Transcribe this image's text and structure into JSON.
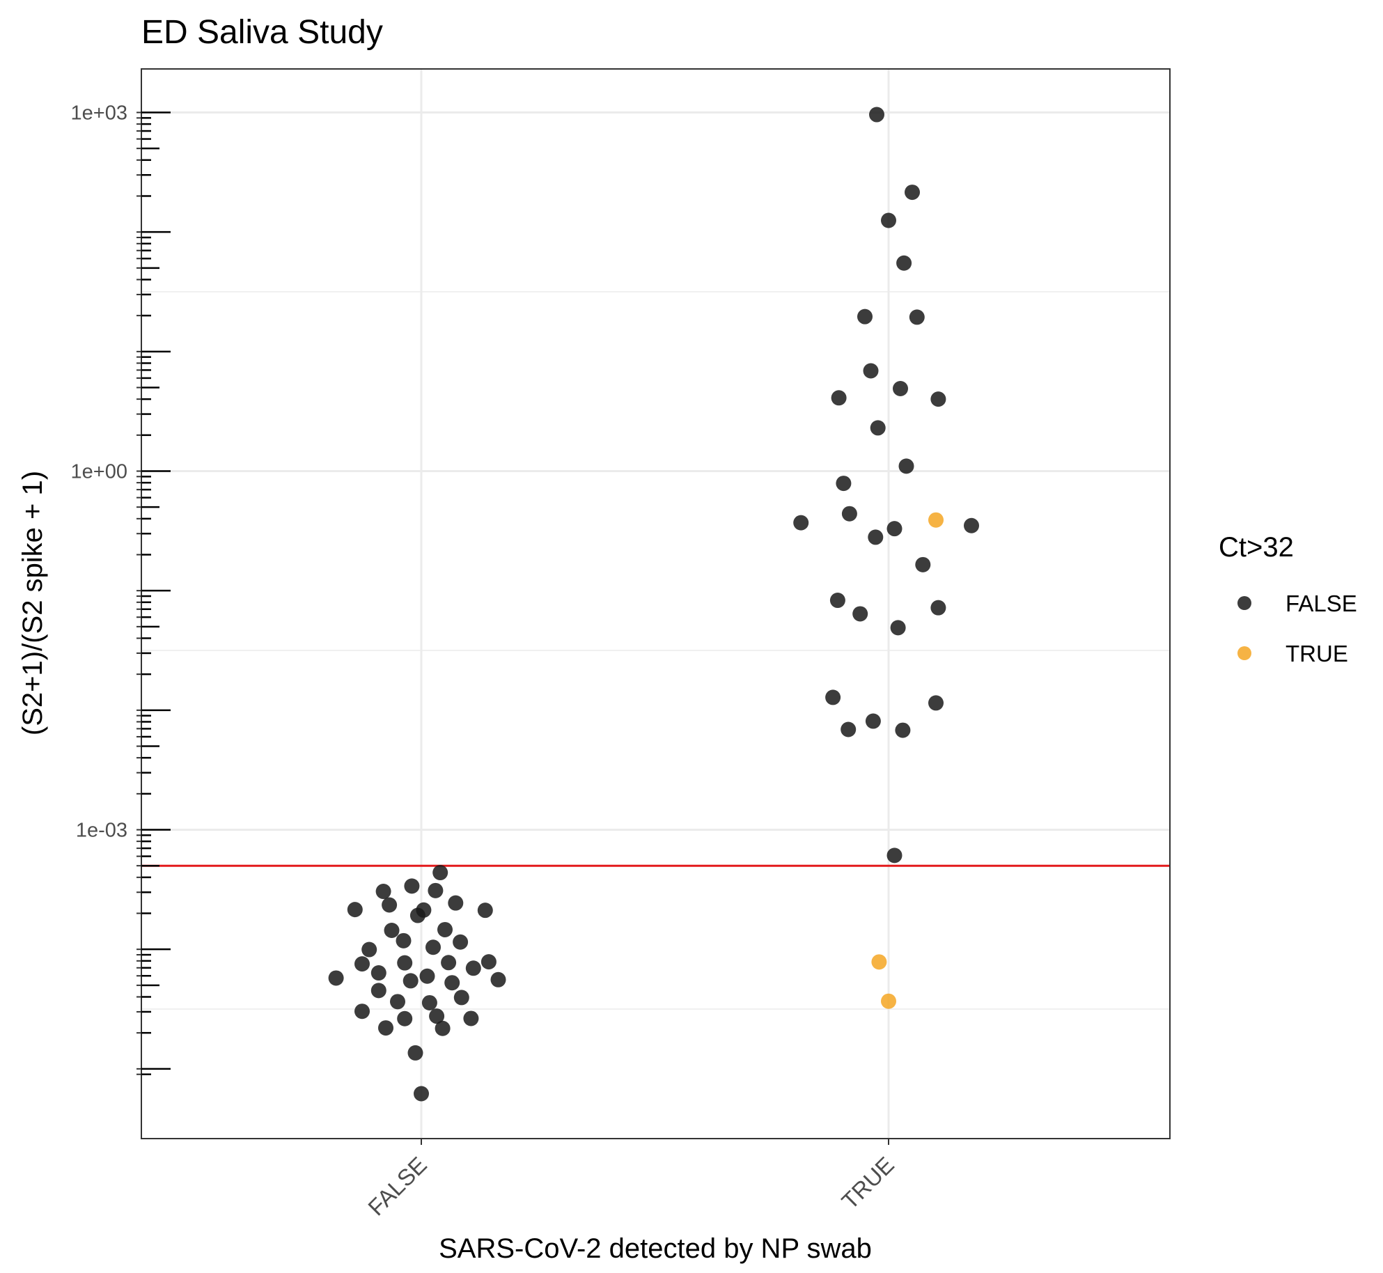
{
  "chart_data": {
    "type": "scatter",
    "title": "ED Saliva Study",
    "xlabel": "SARS-CoV-2 detected by NP swab",
    "ylabel": "(S2+1)/(S2 spike + 1)",
    "y_scale": "log10",
    "ylim": [
      9e-06,
      1800
    ],
    "y_ticks": [
      {
        "value": 0.001,
        "label": "1e-03"
      },
      {
        "value": 1,
        "label": "1e+00"
      },
      {
        "value": 1000,
        "label": "1e+03"
      }
    ],
    "categories": [
      "FALSE",
      "TRUE"
    ],
    "threshold_line": {
      "value": 0.0005,
      "color": "#e31a1c"
    },
    "grid": true,
    "legend": {
      "title": "Ct>32",
      "position": "right",
      "entries": [
        {
          "label": "FALSE",
          "color": "#1a1a1a"
        },
        {
          "label": "TRUE",
          "color": "#f5a623"
        }
      ]
    },
    "series": [
      {
        "name": "FALSE",
        "color": "#1a1a1a",
        "points": [
          {
            "category": "FALSE",
            "jitter": -0.36,
            "y": 5.75e-05
          },
          {
            "category": "FALSE",
            "jitter": -0.28,
            "y": 0.000215
          },
          {
            "category": "FALSE",
            "jitter": -0.25,
            "y": 7.55e-05
          },
          {
            "category": "FALSE",
            "jitter": -0.25,
            "y": 3.03e-05
          },
          {
            "category": "FALSE",
            "jitter": -0.22,
            "y": 9.95e-05
          },
          {
            "category": "FALSE",
            "jitter": -0.18,
            "y": 6.35e-05
          },
          {
            "category": "FALSE",
            "jitter": -0.18,
            "y": 4.52e-05
          },
          {
            "category": "FALSE",
            "jitter": -0.16,
            "y": 0.000305
          },
          {
            "category": "FALSE",
            "jitter": -0.15,
            "y": 2.2e-05
          },
          {
            "category": "FALSE",
            "jitter": -0.135,
            "y": 0.000235
          },
          {
            "category": "FALSE",
            "jitter": -0.125,
            "y": 0.000144
          },
          {
            "category": "FALSE",
            "jitter": -0.1,
            "y": 3.65e-05
          },
          {
            "category": "FALSE",
            "jitter": -0.075,
            "y": 0.000118
          },
          {
            "category": "FALSE",
            "jitter": -0.07,
            "y": 7.7e-05
          },
          {
            "category": "FALSE",
            "jitter": -0.07,
            "y": 2.63e-05
          },
          {
            "category": "FALSE",
            "jitter": -0.045,
            "y": 5.45e-05
          },
          {
            "category": "FALSE",
            "jitter": -0.04,
            "y": 0.000338
          },
          {
            "category": "FALSE",
            "jitter": -0.025,
            "y": 1.36e-05
          },
          {
            "category": "FALSE",
            "jitter": -0.015,
            "y": 0.000192
          },
          {
            "category": "FALSE",
            "jitter": 0.0,
            "y": 6.2e-06
          },
          {
            "category": "FALSE",
            "jitter": 0.01,
            "y": 0.000213
          },
          {
            "category": "FALSE",
            "jitter": 0.025,
            "y": 5.96e-05
          },
          {
            "category": "FALSE",
            "jitter": 0.035,
            "y": 3.57e-05
          },
          {
            "category": "FALSE",
            "jitter": 0.05,
            "y": 0.000104
          },
          {
            "category": "FALSE",
            "jitter": 0.06,
            "y": 0.00031
          },
          {
            "category": "FALSE",
            "jitter": 0.065,
            "y": 2.76e-05
          },
          {
            "category": "FALSE",
            "jitter": 0.08,
            "y": 0.000438
          },
          {
            "category": "FALSE",
            "jitter": 0.09,
            "y": 2.18e-05
          },
          {
            "category": "FALSE",
            "jitter": 0.1,
            "y": 0.000146
          },
          {
            "category": "FALSE",
            "jitter": 0.115,
            "y": 7.74e-05
          },
          {
            "category": "FALSE",
            "jitter": 0.13,
            "y": 5.25e-05
          },
          {
            "category": "FALSE",
            "jitter": 0.145,
            "y": 0.000244
          },
          {
            "category": "FALSE",
            "jitter": 0.165,
            "y": 0.000115
          },
          {
            "category": "FALSE",
            "jitter": 0.17,
            "y": 3.95e-05
          },
          {
            "category": "FALSE",
            "jitter": 0.21,
            "y": 2.64e-05
          },
          {
            "category": "FALSE",
            "jitter": 0.22,
            "y": 6.95e-05
          },
          {
            "category": "FALSE",
            "jitter": 0.27,
            "y": 0.000212
          },
          {
            "category": "FALSE",
            "jitter": 0.285,
            "y": 7.86e-05
          },
          {
            "category": "FALSE",
            "jitter": 0.325,
            "y": 5.57e-05
          },
          {
            "category": "TRUE",
            "jitter": -0.37,
            "y": 0.37
          },
          {
            "category": "TRUE",
            "jitter": -0.235,
            "y": 0.0128
          },
          {
            "category": "TRUE",
            "jitter": -0.215,
            "y": 0.083
          },
          {
            "category": "TRUE",
            "jitter": -0.21,
            "y": 4.1
          },
          {
            "category": "TRUE",
            "jitter": -0.19,
            "y": 0.79
          },
          {
            "category": "TRUE",
            "jitter": -0.17,
            "y": 0.0069
          },
          {
            "category": "TRUE",
            "jitter": -0.165,
            "y": 0.44
          },
          {
            "category": "TRUE",
            "jitter": -0.12,
            "y": 0.064
          },
          {
            "category": "TRUE",
            "jitter": -0.1,
            "y": 19.6
          },
          {
            "category": "TRUE",
            "jitter": -0.075,
            "y": 6.9
          },
          {
            "category": "TRUE",
            "jitter": -0.065,
            "y": 0.0081
          },
          {
            "category": "TRUE",
            "jitter": -0.055,
            "y": 0.28
          },
          {
            "category": "TRUE",
            "jitter": -0.05,
            "y": 960
          },
          {
            "category": "TRUE",
            "jitter": -0.045,
            "y": 2.3
          },
          {
            "category": "TRUE",
            "jitter": 0.0,
            "y": 125
          },
          {
            "category": "TRUE",
            "jitter": 0.025,
            "y": 0.33
          },
          {
            "category": "TRUE",
            "jitter": 0.025,
            "y": 0.00061
          },
          {
            "category": "TRUE",
            "jitter": 0.04,
            "y": 0.049
          },
          {
            "category": "TRUE",
            "jitter": 0.05,
            "y": 4.9
          },
          {
            "category": "TRUE",
            "jitter": 0.06,
            "y": 0.0068
          },
          {
            "category": "TRUE",
            "jitter": 0.065,
            "y": 55
          },
          {
            "category": "TRUE",
            "jitter": 0.075,
            "y": 1.1
          },
          {
            "category": "TRUE",
            "jitter": 0.1,
            "y": 215
          },
          {
            "category": "TRUE",
            "jitter": 0.12,
            "y": 19.4
          },
          {
            "category": "TRUE",
            "jitter": 0.145,
            "y": 0.165
          },
          {
            "category": "TRUE",
            "jitter": 0.2,
            "y": 0.0115
          },
          {
            "category": "TRUE",
            "jitter": 0.21,
            "y": 0.072
          },
          {
            "category": "TRUE",
            "jitter": 0.21,
            "y": 4.0
          },
          {
            "category": "TRUE",
            "jitter": 0.35,
            "y": 0.35
          }
        ]
      },
      {
        "name": "TRUE",
        "color": "#f5a623",
        "points": [
          {
            "category": "TRUE",
            "jitter": -0.04,
            "y": 7.84e-05
          },
          {
            "category": "TRUE",
            "jitter": 0.0,
            "y": 3.68e-05
          },
          {
            "category": "TRUE",
            "jitter": 0.2,
            "y": 0.39
          }
        ]
      }
    ]
  }
}
